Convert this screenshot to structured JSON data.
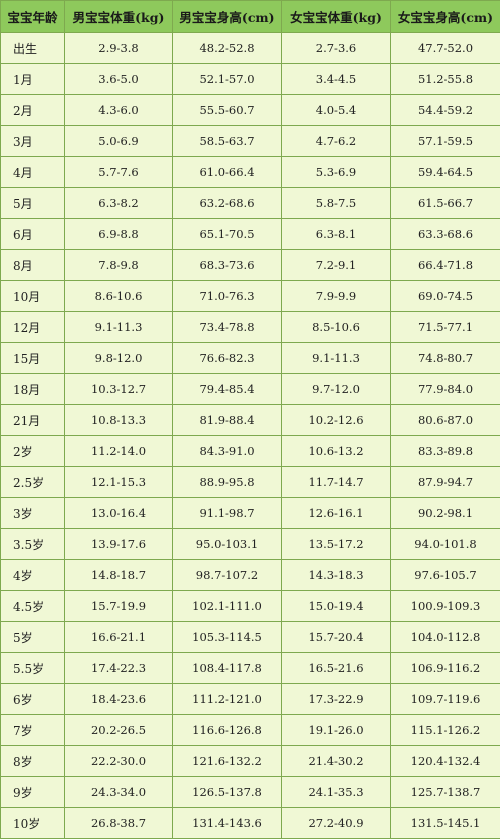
{
  "headers": [
    "宝宝年龄",
    "男宝宝体重(kg)",
    "男宝宝身高(cm)",
    "女宝宝体重(kg)",
    "女宝宝身高(cm)"
  ],
  "rows": [
    [
      "出生",
      "2.9-3.8",
      "48.2-52.8",
      "2.7-3.6",
      "47.7-52.0"
    ],
    [
      "1月",
      "3.6-5.0",
      "52.1-57.0",
      "3.4-4.5",
      "51.2-55.8"
    ],
    [
      "2月",
      "4.3-6.0",
      "55.5-60.7",
      "4.0-5.4",
      "54.4-59.2"
    ],
    [
      "3月",
      "5.0-6.9",
      "58.5-63.7",
      "4.7-6.2",
      "57.1-59.5"
    ],
    [
      "4月",
      "5.7-7.6",
      "61.0-66.4",
      "5.3-6.9",
      "59.4-64.5"
    ],
    [
      "5月",
      "6.3-8.2",
      "63.2-68.6",
      "5.8-7.5",
      "61.5-66.7"
    ],
    [
      "6月",
      "6.9-8.8",
      "65.1-70.5",
      "6.3-8.1",
      "63.3-68.6"
    ],
    [
      "8月",
      "7.8-9.8",
      "68.3-73.6",
      "7.2-9.1",
      "66.4-71.8"
    ],
    [
      "10月",
      "8.6-10.6",
      "71.0-76.3",
      "7.9-9.9",
      "69.0-74.5"
    ],
    [
      "12月",
      "9.1-11.3",
      "73.4-78.8",
      "8.5-10.6",
      "71.5-77.1"
    ],
    [
      "15月",
      "9.8-12.0",
      "76.6-82.3",
      "9.1-11.3",
      "74.8-80.7"
    ],
    [
      "18月",
      "10.3-12.7",
      "79.4-85.4",
      "9.7-12.0",
      "77.9-84.0"
    ],
    [
      "21月",
      "10.8-13.3",
      "81.9-88.4",
      "10.2-12.6",
      "80.6-87.0"
    ],
    [
      "2岁",
      "11.2-14.0",
      "84.3-91.0",
      "10.6-13.2",
      "83.3-89.8"
    ],
    [
      "2.5岁",
      "12.1-15.3",
      "88.9-95.8",
      "11.7-14.7",
      "87.9-94.7"
    ],
    [
      "3岁",
      "13.0-16.4",
      "91.1-98.7",
      "12.6-16.1",
      "90.2-98.1"
    ],
    [
      "3.5岁",
      "13.9-17.6",
      "95.0-103.1",
      "13.5-17.2",
      "94.0-101.8"
    ],
    [
      "4岁",
      "14.8-18.7",
      "98.7-107.2",
      "14.3-18.3",
      "97.6-105.7"
    ],
    [
      "4.5岁",
      "15.7-19.9",
      "102.1-111.0",
      "15.0-19.4",
      "100.9-109.3"
    ],
    [
      "5岁",
      "16.6-21.1",
      "105.3-114.5",
      "15.7-20.4",
      "104.0-112.8"
    ],
    [
      "5.5岁",
      "17.4-22.3",
      "108.4-117.8",
      "16.5-21.6",
      "106.9-116.2"
    ],
    [
      "6岁",
      "18.4-23.6",
      "111.2-121.0",
      "17.3-22.9",
      "109.7-119.6"
    ],
    [
      "7岁",
      "20.2-26.5",
      "116.6-126.8",
      "19.1-26.0",
      "115.1-126.2"
    ],
    [
      "8岁",
      "22.2-30.0",
      "121.6-132.2",
      "21.4-30.2",
      "120.4-132.4"
    ],
    [
      "9岁",
      "24.3-34.0",
      "126.5-137.8",
      "24.1-35.3",
      "125.7-138.7"
    ],
    [
      "10岁",
      "26.8-38.7",
      "131.4-143.6",
      "27.2-40.9",
      "131.5-145.1"
    ]
  ],
  "colors": {
    "header_bg": "#8ec95c",
    "cell_bg": "#f0f8d5",
    "border": "#7ea94f"
  }
}
